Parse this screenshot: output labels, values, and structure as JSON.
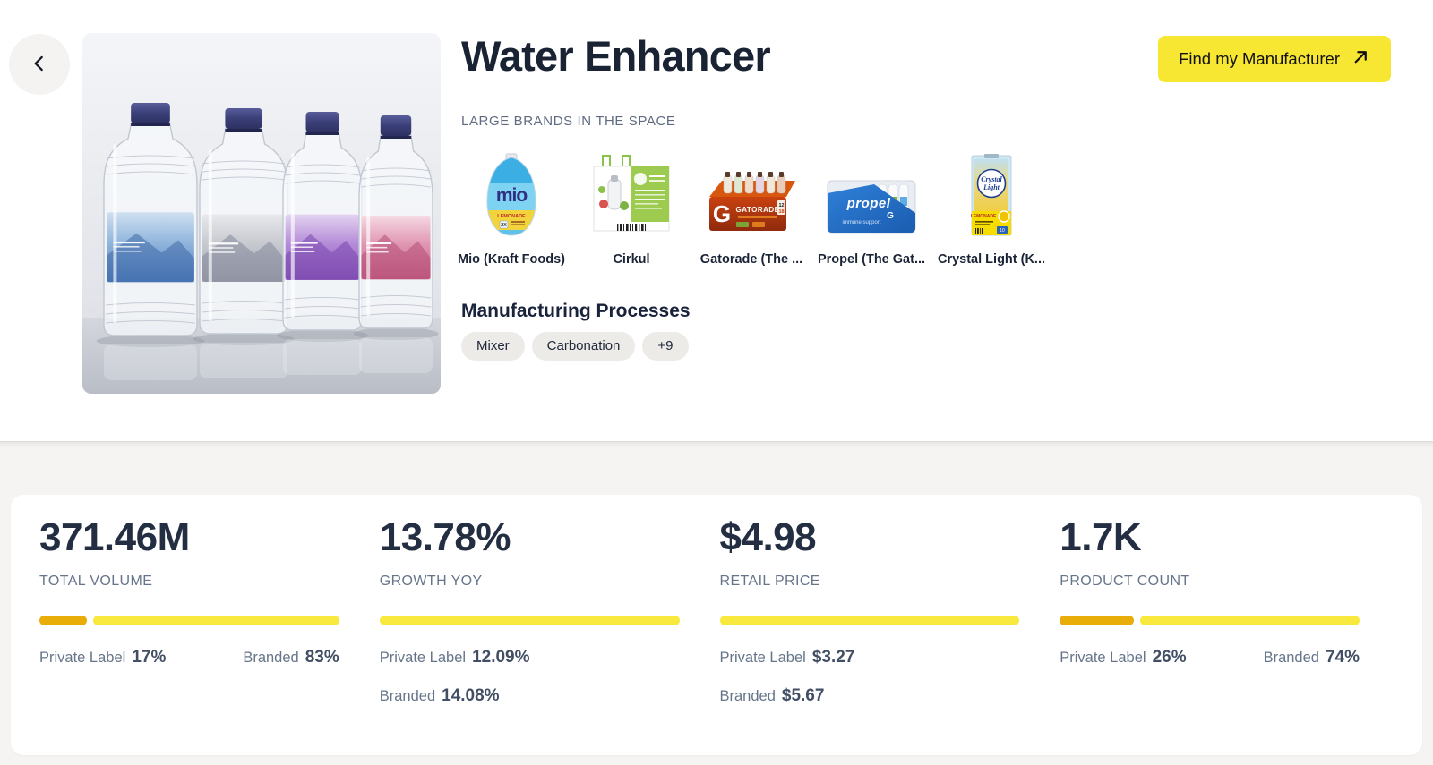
{
  "header": {
    "title": "Water Enhancer",
    "cta_label": "Find my Manufacturer",
    "brands_section_label": "LARGE BRANDS IN THE SPACE",
    "brands": [
      {
        "name": "Mio (Kraft Foods)"
      },
      {
        "name": "Cirkul"
      },
      {
        "name": "Gatorade (The ..."
      },
      {
        "name": "Propel (The Gat..."
      },
      {
        "name": "Crystal Light (K..."
      }
    ],
    "processes": {
      "heading": "Manufacturing Processes",
      "tags": [
        "Mixer",
        "Carbonation",
        "+9"
      ]
    }
  },
  "stats": {
    "cards": [
      {
        "value": "371.46M",
        "label": "TOTAL VOLUME",
        "segments": [
          {
            "name": "private-label",
            "color": "gold",
            "pct": 17
          },
          {
            "name": "branded",
            "color": "yellow",
            "pct": 83
          }
        ],
        "rows": [
          {
            "label": "Private Label",
            "value": "17%"
          },
          {
            "label": "Branded",
            "value": "83%"
          }
        ]
      },
      {
        "value": "13.78%",
        "label": "GROWTH YOY",
        "segments": [
          {
            "name": "total",
            "color": "yellow",
            "pct": 100
          }
        ],
        "rows": [
          {
            "label": "Private Label",
            "value": "12.09%"
          },
          {
            "label": "Branded",
            "value": "14.08%"
          }
        ]
      },
      {
        "value": "$4.98",
        "label": "RETAIL PRICE",
        "segments": [
          {
            "name": "total",
            "color": "yellow",
            "pct": 100
          }
        ],
        "rows": [
          {
            "label": "Private Label",
            "value": "$3.27"
          },
          {
            "label": "Branded",
            "value": "$5.67"
          }
        ]
      },
      {
        "value": "1.7K",
        "label": "PRODUCT COUNT",
        "segments": [
          {
            "name": "private-label",
            "color": "gold",
            "pct": 26
          },
          {
            "name": "branded",
            "color": "yellow",
            "pct": 74
          }
        ],
        "rows": [
          {
            "label": "Private Label",
            "value": "26%"
          },
          {
            "label": "Branded",
            "value": "74%"
          }
        ]
      }
    ]
  },
  "colors": {
    "button_yellow": "#f7e733",
    "bar_yellow": "#f9e83e",
    "bar_gold": "#e9ad0a",
    "title_navy": "#1a2333",
    "muted_gray": "#66758a",
    "section_bg": "#f5f4f2",
    "chip_bg": "#ecebe8"
  }
}
